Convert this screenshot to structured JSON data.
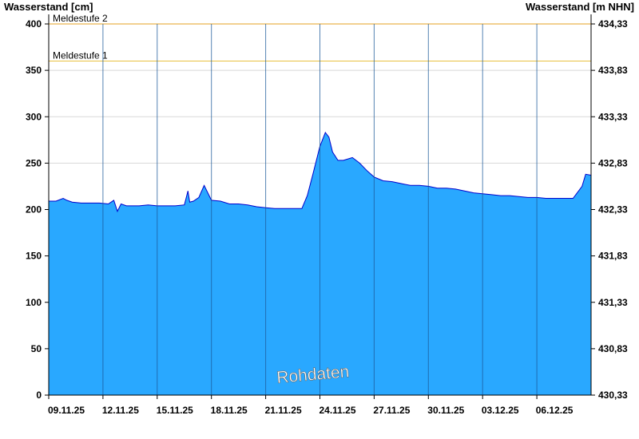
{
  "chart_data": {
    "type": "area",
    "ylabel_left": "Wasserstand [cm]",
    "ylabel_right": "Wasserstand [m NHN]",
    "x_ticks": [
      "09.11.25",
      "12.11.25",
      "15.11.25",
      "18.11.25",
      "21.11.25",
      "24.11.25",
      "27.11.25",
      "30.11.25",
      "03.12.25",
      "06.12.25"
    ],
    "x_range_days": [
      0,
      30
    ],
    "ylim": [
      0,
      400
    ],
    "y_ticks_left": [
      "0",
      "50",
      "100",
      "150",
      "200",
      "250",
      "300",
      "350",
      "400"
    ],
    "y_ticks_right": [
      "430,33",
      "430,83",
      "431,33",
      "431,83",
      "432,33",
      "432,83",
      "433,33",
      "433,83",
      "434,33"
    ],
    "grid": "horizontal",
    "thresholds": [
      {
        "label": "Meldestufe 2",
        "value": 400,
        "color": "#e6a020"
      },
      {
        "label": "Meldestufe 1",
        "value": 360,
        "color": "#e8c040"
      }
    ],
    "watermark": "Rohdaten",
    "series": [
      {
        "fill_color": "#29a8ff",
        "line_color": "#0000cc",
        "x": [
          0,
          0.4,
          0.8,
          1.0,
          1.3,
          1.8,
          2.3,
          2.8,
          3.3,
          3.6,
          3.8,
          4.0,
          4.3,
          4.6,
          5.0,
          5.5,
          6.0,
          6.5,
          7.0,
          7.5,
          7.7,
          7.8,
          8.0,
          8.3,
          8.6,
          9.0,
          9.5,
          10.0,
          10.5,
          11.0,
          11.5,
          12.0,
          12.5,
          13.0,
          13.5,
          14.0,
          14.3,
          14.6,
          15.0,
          15.3,
          15.5,
          15.7,
          16.0,
          16.3,
          16.8,
          17.2,
          17.6,
          18.0,
          18.5,
          19.0,
          19.5,
          20.0,
          20.5,
          21.0,
          21.5,
          22.0,
          22.5,
          23.0,
          23.5,
          24.0,
          24.5,
          25.0,
          25.5,
          26.0,
          26.5,
          27.0,
          27.5,
          28.0,
          28.5,
          29.0,
          29.5,
          29.7,
          30.0
        ],
        "y": [
          209,
          209,
          212,
          210,
          208,
          207,
          207,
          207,
          206,
          210,
          198,
          206,
          204,
          204,
          204,
          205,
          204,
          204,
          204,
          205,
          220,
          208,
          209,
          213,
          226,
          210,
          209,
          206,
          206,
          205,
          203,
          202,
          201,
          201,
          201,
          201,
          215,
          237,
          268,
          283,
          278,
          262,
          253,
          253,
          256,
          250,
          242,
          235,
          231,
          230,
          228,
          226,
          226,
          225,
          223,
          223,
          222,
          220,
          218,
          217,
          216,
          215,
          215,
          214,
          213,
          213,
          212,
          212,
          212,
          212,
          225,
          238,
          237
        ]
      }
    ]
  }
}
